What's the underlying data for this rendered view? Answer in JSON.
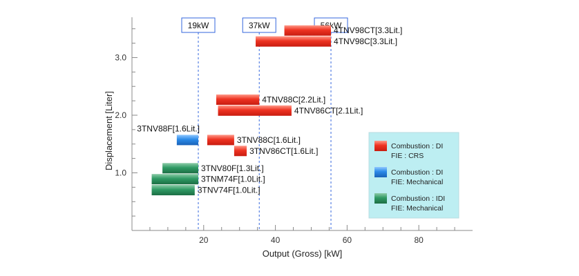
{
  "chart_data": {
    "type": "bar",
    "orientation": "horizontal-range",
    "xlabel": "Output (Gross) [kW]",
    "ylabel": "Displacement  [Liter]",
    "xlim": [
      0,
      95
    ],
    "ylim": [
      0,
      3.7
    ],
    "xticks": [
      20,
      40,
      60,
      80
    ],
    "yticks": [
      1.0,
      2.0,
      3.0
    ],
    "ytick_labels": [
      "1.0",
      "2.0",
      "3.0"
    ],
    "reference_lines": [
      {
        "x": 18.5,
        "label": "19kW"
      },
      {
        "x": 35.5,
        "label": "37kW"
      },
      {
        "x": 55.5,
        "label": "56kW"
      }
    ],
    "bars": [
      {
        "label": "4TNV98CT[3.3Lit.]",
        "x_start": 42.5,
        "x_end": 55.5,
        "y": 3.47,
        "group": "crs",
        "label_side": "right"
      },
      {
        "label": "4TNV98C[3.3Lit.]",
        "x_start": 34.5,
        "x_end": 55.5,
        "y": 3.28,
        "group": "crs",
        "label_side": "right"
      },
      {
        "label": "4TNV88C[2.2Lit.]",
        "x_start": 23.5,
        "x_end": 35.5,
        "y": 2.27,
        "group": "crs",
        "label_side": "right"
      },
      {
        "label": "4TNV86CT[2.1Lit.]",
        "x_start": 24.0,
        "x_end": 44.5,
        "y": 2.08,
        "group": "crs",
        "label_side": "right"
      },
      {
        "label": "3TNV88F[1.6Lit.]",
        "x_start": 12.5,
        "x_end": 18.5,
        "y": 1.57,
        "group": "di_mech",
        "label_side": "left"
      },
      {
        "label": "3TNV88C[1.6Lit.]",
        "x_start": 21.0,
        "x_end": 28.5,
        "y": 1.57,
        "group": "crs",
        "label_side": "right"
      },
      {
        "label": "3TNV86CT[1.6Lit.]",
        "x_start": 28.5,
        "x_end": 32.0,
        "y": 1.38,
        "group": "crs",
        "label_side": "right"
      },
      {
        "label": "3TNV80F[1.3Lit.]",
        "x_start": 8.5,
        "x_end": 18.5,
        "y": 1.08,
        "group": "idi_mech",
        "label_side": "right"
      },
      {
        "label": "3TNM74F[1.0Lit.]",
        "x_start": 5.5,
        "x_end": 18.5,
        "y": 0.89,
        "group": "idi_mech",
        "label_side": "right"
      },
      {
        "label": "3TNV74F[1.0Lit.]",
        "x_start": 5.5,
        "x_end": 17.5,
        "y": 0.7,
        "group": "idi_mech",
        "label_side": "right"
      }
    ],
    "legend": {
      "position": "right",
      "items": [
        {
          "key": "crs",
          "line1": "Combustion : DI",
          "line2": "FIE : CRS"
        },
        {
          "key": "di_mech",
          "line1": "Combustion : DI",
          "line2": "FIE: Mechanical"
        },
        {
          "key": "idi_mech",
          "line1": "Combustion : IDI",
          "line2": "FIE: Mechanical"
        }
      ]
    },
    "colors": {
      "crs": [
        "#ff9a8a",
        "#ee3322",
        "#c81c10"
      ],
      "di_mech": [
        "#8fc8ff",
        "#2b8ae8",
        "#1a62b8"
      ],
      "idi_mech": [
        "#8ccba8",
        "#2f9a64",
        "#1c6e44"
      ],
      "legend_bg": "#bdeef2",
      "reference": "#3366dd",
      "axis": "#888888"
    },
    "grid": false
  }
}
